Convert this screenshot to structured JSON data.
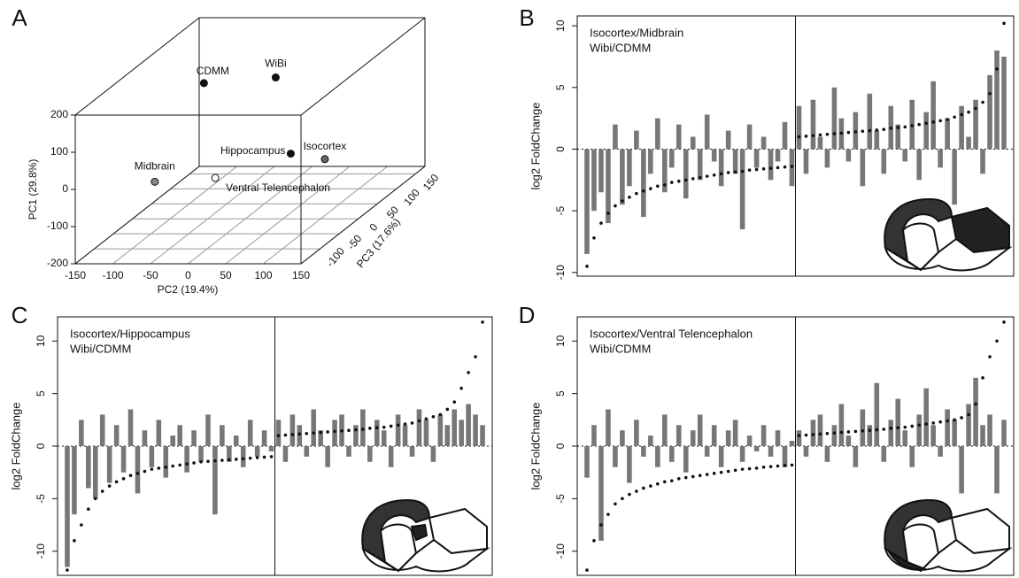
{
  "chart_data": [
    {
      "type": "scatter3d",
      "panel_label": "A",
      "xlabel": "PC2 (19.4%)",
      "ylabel": "PC1 (29.8%)",
      "zlabel": "PC3 (17.6%)",
      "xlim": [
        -150,
        150
      ],
      "ylim": [
        -200,
        200
      ],
      "zlim": [
        -150,
        175
      ],
      "xticks": [
        -150,
        -100,
        -50,
        0,
        50,
        100,
        150
      ],
      "yticks": [
        -200,
        -100,
        0,
        100,
        200
      ],
      "zticks": [
        -100,
        -50,
        0,
        50,
        100,
        150
      ],
      "points": [
        {
          "name": "CDMM",
          "x": -55,
          "y": 165,
          "z": 0,
          "color": "#111111"
        },
        {
          "name": "WiBi",
          "x": 15,
          "y": 140,
          "z": 50,
          "color": "#111111"
        },
        {
          "name": "Hippocampus",
          "x": 35,
          "y": -65,
          "z": 50,
          "color": "#111111"
        },
        {
          "name": "Isocortex",
          "x": 55,
          "y": -120,
          "z": 100,
          "color": "#666666"
        },
        {
          "name": "Midbrain",
          "x": -95,
          "y": -60,
          "z": -50,
          "color": "#888888"
        },
        {
          "name": "Ventral Telencephalon",
          "x": -40,
          "y": -90,
          "z": 0,
          "color": "#ffffff"
        }
      ]
    },
    {
      "type": "waterfall",
      "panel_label": "B",
      "ylabel": "log2 FoldChange",
      "ylim": [
        -10.3,
        10.8
      ],
      "yticks": [
        -10,
        -5,
        0,
        5,
        10
      ],
      "series": [
        {
          "name": "Isocortex/Midbrain",
          "color": "#111111",
          "values": [
            -9.5,
            -7.2,
            -6.0,
            -5.2,
            -4.6,
            -4.2,
            -3.9,
            -3.6,
            -3.4,
            -3.2,
            -3.0,
            -2.9,
            -2.7,
            -2.6,
            -2.5,
            -2.4,
            -2.3,
            -2.2,
            -2.1,
            -2.0,
            -1.9,
            -1.85,
            -1.8,
            -1.7,
            -1.65,
            -1.6,
            -1.55,
            -1.5,
            -1.45,
            -1.4,
            1.0,
            1.05,
            1.1,
            1.15,
            1.2,
            1.25,
            1.3,
            1.35,
            1.4,
            1.45,
            1.5,
            1.55,
            1.6,
            1.7,
            1.75,
            1.8,
            1.9,
            2.0,
            2.1,
            2.2,
            2.3,
            2.4,
            2.6,
            2.8,
            3.0,
            3.3,
            3.8,
            4.5,
            6.5,
            10.2
          ]
        },
        {
          "name": "Wibi/CDMM",
          "color": "#777777",
          "values": [
            -8.5,
            -5.0,
            -3.5,
            -6.0,
            2.0,
            -4.5,
            -3.0,
            1.5,
            -5.5,
            -2.0,
            2.5,
            -3.5,
            -1.5,
            2.0,
            -4.0,
            1.0,
            -2.5,
            2.8,
            -1.0,
            -3.0,
            1.5,
            -2.0,
            -6.5,
            2.0,
            -1.5,
            1.0,
            -2.5,
            -1.0,
            2.2,
            -3.0,
            3.5,
            -2.0,
            4.0,
            1.0,
            -1.5,
            5.0,
            2.5,
            -1.0,
            3.0,
            -3.0,
            4.5,
            1.5,
            -2.0,
            3.5,
            2.0,
            -1.0,
            4.0,
            -2.5,
            3.0,
            5.5,
            -1.5,
            2.5,
            -4.5,
            3.5,
            1.0,
            4.0,
            -2.0,
            6.0,
            8.0,
            7.5
          ]
        }
      ]
    },
    {
      "type": "waterfall",
      "panel_label": "C",
      "ylabel": "log2 FoldChange",
      "ylim": [
        -12.3,
        12.3
      ],
      "yticks": [
        -10,
        -5,
        0,
        5,
        10
      ],
      "series": [
        {
          "name": "Isocortex/Hippocampus",
          "color": "#111111",
          "values": [
            -11.8,
            -9.0,
            -7.5,
            -6.0,
            -5.0,
            -4.3,
            -3.8,
            -3.4,
            -3.1,
            -2.8,
            -2.6,
            -2.4,
            -2.2,
            -2.1,
            -2.0,
            -1.9,
            -1.8,
            -1.7,
            -1.6,
            -1.5,
            -1.45,
            -1.4,
            -1.35,
            -1.3,
            -1.25,
            -1.2,
            -1.15,
            -1.1,
            -1.05,
            -1.0,
            1.0,
            1.05,
            1.1,
            1.15,
            1.2,
            1.25,
            1.3,
            1.35,
            1.4,
            1.45,
            1.5,
            1.55,
            1.6,
            1.7,
            1.75,
            1.8,
            1.9,
            2.0,
            2.1,
            2.2,
            2.4,
            2.6,
            2.8,
            3.0,
            3.5,
            4.2,
            5.5,
            7.0,
            8.5,
            11.8
          ]
        },
        {
          "name": "Wibi/CDMM",
          "color": "#777777",
          "values": [
            -11.5,
            -6.5,
            2.5,
            -4.0,
            -5.0,
            3.0,
            -3.5,
            2.0,
            -2.5,
            3.5,
            -4.5,
            1.5,
            -2.0,
            2.5,
            -3.0,
            1.0,
            2.0,
            -2.5,
            1.5,
            -1.5,
            3.0,
            -6.5,
            2.0,
            -1.5,
            1.0,
            -2.0,
            2.5,
            -1.0,
            1.5,
            -0.5,
            2.5,
            -1.5,
            3.0,
            2.0,
            -1.0,
            3.5,
            1.5,
            -2.0,
            2.5,
            3.0,
            -1.0,
            2.0,
            3.5,
            -1.5,
            2.5,
            1.5,
            -2.0,
            3.0,
            2.0,
            -1.0,
            3.5,
            2.5,
            -1.5,
            3.0,
            2.0,
            3.5,
            2.5,
            4.0,
            3.0,
            2.0
          ]
        }
      ]
    },
    {
      "type": "waterfall",
      "panel_label": "D",
      "ylabel": "log2 FoldChange",
      "ylim": [
        -12.3,
        12.3
      ],
      "yticks": [
        -10,
        -5,
        0,
        5,
        10
      ],
      "series": [
        {
          "name": "Isocortex/Ventral Telencephalon",
          "color": "#111111",
          "values": [
            -11.8,
            -9.0,
            -7.5,
            -6.5,
            -5.5,
            -5.0,
            -4.6,
            -4.3,
            -4.0,
            -3.8,
            -3.6,
            -3.4,
            -3.3,
            -3.1,
            -3.0,
            -2.9,
            -2.8,
            -2.7,
            -2.6,
            -2.5,
            -2.4,
            -2.3,
            -2.2,
            -2.15,
            -2.1,
            -2.0,
            -1.95,
            -1.9,
            -1.85,
            -1.8,
            1.0,
            1.05,
            1.1,
            1.15,
            1.2,
            1.25,
            1.3,
            1.35,
            1.4,
            1.45,
            1.5,
            1.55,
            1.6,
            1.7,
            1.75,
            1.8,
            1.9,
            2.0,
            2.1,
            2.2,
            2.3,
            2.4,
            2.5,
            2.7,
            3.0,
            4.0,
            6.5,
            8.5,
            10.0,
            11.8
          ]
        },
        {
          "name": "Wibi/CDMM",
          "color": "#777777",
          "values": [
            -3.0,
            2.0,
            -9.0,
            3.5,
            -2.0,
            1.5,
            -3.5,
            2.5,
            -1.0,
            1.0,
            -2.0,
            3.0,
            -1.5,
            2.0,
            -2.5,
            1.5,
            3.0,
            -1.0,
            2.0,
            -2.0,
            1.5,
            2.5,
            -1.5,
            1.0,
            -0.5,
            2.0,
            -1.0,
            1.5,
            -2.0,
            0.5,
            1.5,
            -1.0,
            2.5,
            3.0,
            -1.5,
            2.0,
            4.0,
            1.0,
            -2.0,
            3.5,
            2.0,
            6.0,
            -1.5,
            2.5,
            4.5,
            1.5,
            -2.0,
            3.0,
            5.5,
            2.0,
            -1.0,
            3.5,
            2.5,
            -4.5,
            4.0,
            6.5,
            2.0,
            3.0,
            -4.5,
            2.5
          ]
        }
      ]
    }
  ]
}
